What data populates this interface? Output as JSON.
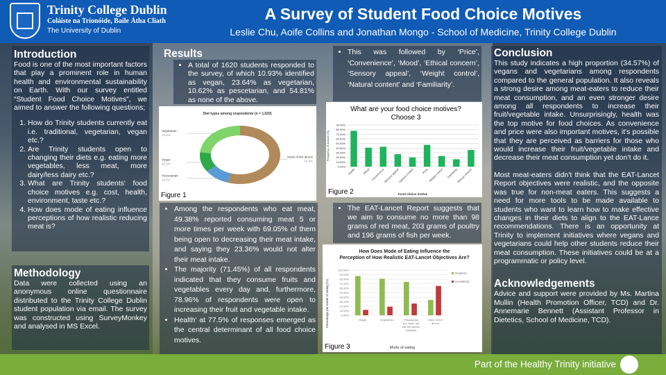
{
  "header": {
    "institution": "Trinity College Dublin",
    "institution_irish": "Coláiste na Tríonóide, Baile Átha Cliath",
    "university": "The University of Dublin",
    "title": "A Survey of Student Food Choice Motives",
    "authors": "Leslie Chu, Aoife Collins and Jonathan Mongo - School of Medicine, Trinity College Dublin"
  },
  "introduction": {
    "heading": "Introduction",
    "body": "Food is one of the most important factors that play a prominent role in human health and environmental sustainability on Earth. With our survey entitled “Student Food Choice Motives”, we aimed to answer the following questions;",
    "questions": [
      "How do Trinity students currently eat i.e. traditional, vegetarian, vegan etc.?",
      "Are Trinity students open to changing their diets e.g. eating more vegetables, less meat, more dairy/less dairy etc.?",
      "What are Trinity students' food choice motives e.g. cost, health, environment, taste etc.?",
      "How does mode of eating influence perceptions of how realistic reducing meat is?"
    ]
  },
  "methodology": {
    "heading": "Methodology",
    "body": "Data were collected using an anonymous online questionnaire distributed to the Trinity College Dublin student population via email. The survey was constructed using SurveyMonkey and analysed in MS Excel."
  },
  "results": {
    "heading": "Results",
    "bullets_top": [
      "A total of 1620 students responded to the survey, of which 10.93% identified as vegan, 23.64% as vegetarian, 10.62% as pescetarian, and 54.81% as none of the above."
    ],
    "bullets_mid": [
      "Among the respondents who eat meat, 49.38% reported consuming meat 5 or more times per week with 69.05% of them being open to decreasing their meat intake, and saying they 23.36% would not alter their meat intake.",
      "The majority (71.45%) of all respondents indicated that they consume fruits and vegetables every day and, furthermore, 78.96% of respondents were open to increasing their fruit and vegetable intake.",
      "Health' at 77.5% of responses emerged as the central determinant of all food choice motives."
    ],
    "bullets_col3_top": [
      "This was followed by ‘Price’, ‘Convenience’, ‘Mood’, ‘Ethical concern’, ‘Sensory appeal’, ‘Weight control’, ‘Natural content’ and ‘Familiarity’."
    ],
    "bullets_col3_mid": [
      "The EAT-Lancet Report suggests that we aim to consume no more than 98 grams of red meat, 203 grams of poultry and 196 grams of fish per week."
    ],
    "figure_labels": [
      "Figure 1",
      "Figure 2",
      "Figure 3"
    ]
  },
  "conclusion": {
    "heading": "Conclusion",
    "paragraphs": [
      "This study indicates a high proportion (34.57%) of vegans and vegetarians among respondents compared to the general population. It also reveals a strong desire among meat-eaters to reduce their meat consumption, and an even stronger desire among all respondents to increase their fruit/vegetable intake. Unsurprisingly, health was the top motive for food choices. As convenience and price were also important motives, it's possible that they are perceived as barriers for those who would increase their fruit/vegetable intake and decrease their meat consumption yet don't do it.",
      "Most meat-eaters didn't think that the EAT-Lancet Report objectives were realistic, and the opposite was true for non-meat eaters.  This suggests a need for more tools to be made available to students who want to learn how to make effective changes in their diets to align to the EAT-Lance recommendations. There is an opportunity at Trinity to implement initiatives where vegans and vegetarians could help other students reduce their meat consumption. These initiatives could be at a programmatic or policy level."
    ]
  },
  "acknowledgements": {
    "heading": "Acknowledgements",
    "body": "Advice and support were provided by Ms. Martina Mullin (Health Promotion Officer, TCD) and Dr. Annemarie Bennett (Assistant Professor in Dietetics, School of Medicine, TCD)."
  },
  "footer": {
    "text": "Part of the Healthy Trinity initiative",
    "logo": "ht"
  },
  "colors": {
    "header": "#0f5bb5",
    "footer": "#79ad3c"
  },
  "chart_data": [
    {
      "type": "pie",
      "title": "Diet types among respondents (n = 1,620)",
      "categories": [
        "None of the above",
        "Pescetarian",
        "Vegan",
        "Vegetarian"
      ],
      "values": [
        54.8,
        10.6,
        10.9,
        23.6
      ],
      "labels": [
        "54.8%",
        "10.6%",
        "10.9%",
        "23.6%"
      ],
      "colors": [
        "#b08a5a",
        "#5a9bd5",
        "#2fa84a",
        "#7ed36a"
      ]
    },
    {
      "type": "bar",
      "title": "What are your food choice motives? Choose 3",
      "xlabel": "Food choice motive",
      "ylabel": "Frequency of answer (%)",
      "categories": [
        "Health",
        "Mood",
        "Convenience",
        "Sensory appeal",
        "Natural content",
        "Price",
        "Weight control",
        "Familiarity",
        "Ethical concern"
      ],
      "values": [
        77.5,
        41,
        43,
        27,
        20,
        47,
        23,
        16,
        36
      ],
      "ylim": [
        0,
        90
      ],
      "yticks": [
        "0.00%",
        "10.00%",
        "20.00%",
        "30.00%",
        "40.00%",
        "50.00%",
        "60.00%",
        "70.00%",
        "80.00%",
        "90.00%"
      ],
      "color": "#1fb35c",
      "grid": true
    },
    {
      "type": "bar",
      "title": "How Does Mode of Eating Influence the Perception of How Realistic EAT-Lancet Objectives Are?",
      "xlabel": "Mode of eating",
      "ylabel": "Percentage per mode of eating (%)",
      "categories": [
        "Vegan",
        "Vegetarian",
        "Pescetarian (no meat, but eat fish and/or shellfish)",
        "None of the above"
      ],
      "series": [
        {
          "name": "Realistic",
          "values": [
            87,
            81,
            74,
            34
          ],
          "color": "#8fbc4f"
        },
        {
          "name": "Unrealistic",
          "values": [
            12,
            19,
            26,
            65
          ],
          "color": "#c0393b"
        }
      ],
      "ylim": [
        0,
        100
      ],
      "yticks": [
        "0.00%",
        "10.00%",
        "20.00%",
        "30.00%",
        "40.00%",
        "50.00%",
        "60.00%",
        "70.00%",
        "80.00%",
        "90.00%",
        "100.00%"
      ],
      "legend": "right",
      "grid": true
    }
  ]
}
